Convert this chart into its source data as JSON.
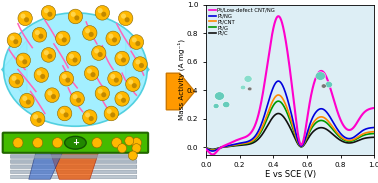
{
  "xlabel": "E vs SCE (V)",
  "ylabel": "Mass Activity (A mg⁻¹)",
  "xlim": [
    0.0,
    1.0
  ],
  "ylim": [
    -0.05,
    1.0
  ],
  "yticks": [
    0.0,
    0.2,
    0.4,
    0.6,
    0.8,
    1.0
  ],
  "xticks": [
    0.0,
    0.2,
    0.4,
    0.6,
    0.8,
    1.0
  ],
  "colors": {
    "magenta": "#FF00CC",
    "blue": "#0000DD",
    "orange": "#FF8800",
    "green": "#009900",
    "black": "#111111"
  },
  "legend": [
    {
      "label": "Pt/Low-defect CNT/NG",
      "color": "#FF00CC"
    },
    {
      "label": "Pt/NG",
      "color": "#0000DD"
    },
    {
      "label": "Pt/CNT",
      "color": "#FF8800"
    },
    {
      "label": "Pt/G",
      "color": "#009900"
    },
    {
      "label": "Pt/C",
      "color": "#111111"
    }
  ],
  "plot_bg": "#ddeef5",
  "arrow_color": "#FF9900",
  "arrow_edge": "#CC7700",
  "cyan_blob": "#99EEFF",
  "cyan_blob_edge": "#44CCDD",
  "green_base": "#44BB00",
  "green_base_edge": "#226600",
  "sphere_fill": "#FFB800",
  "sphere_edge": "#886600",
  "cnt_color": "#FF66BB",
  "substrate_fill": "#778899",
  "left_bg": "#FFFFFF"
}
